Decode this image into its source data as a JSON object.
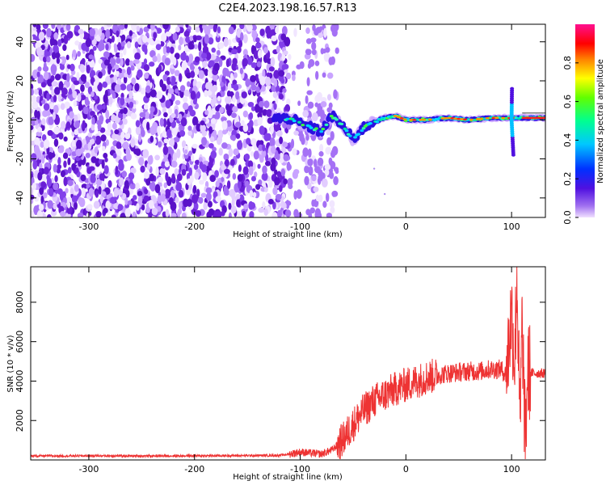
{
  "title": "C2E4.2023.198.16.57.R13",
  "colors": {
    "snr_line": "#ee3333",
    "spectrogram_purple": "#6a1fd6",
    "trace_red": "#ff1a1a",
    "frame": "#000000"
  },
  "chart_data": [
    {
      "type": "heatmap",
      "xlabel": "Height of straight line (km)",
      "ylabel": "Frequency (Hz)",
      "xlim": [
        -355,
        132
      ],
      "ylim": [
        -50,
        49
      ],
      "x_ticks": [
        -300,
        -200,
        -100,
        0,
        100
      ],
      "y_ticks": [
        -40,
        -20,
        0,
        20,
        40
      ],
      "grid": false,
      "colorbar": {
        "label": "Normalized spectral amplitude",
        "range": [
          0,
          1
        ],
        "ticks": [
          0.0,
          0.2,
          0.4,
          0.6,
          0.8
        ],
        "colormap": "hsv-rainbow (violet to magenta)"
      },
      "features": {
        "noise_region_km": [
          -355,
          -65
        ],
        "noise_gap_km": [
          -100,
          -95
        ],
        "main_trace": {
          "x": [
            -120,
            -110,
            -100,
            -90,
            -80,
            -70,
            -60,
            -50,
            -40,
            -30,
            -20,
            -10,
            0,
            20,
            40,
            60,
            80,
            90,
            100,
            110,
            132
          ],
          "y": [
            0,
            1,
            -2,
            -4,
            -6,
            2,
            -3,
            -10,
            -4,
            -1,
            1,
            2,
            0,
            0,
            1,
            0,
            1,
            1,
            1,
            1,
            1
          ]
        },
        "spike_at_km": 100,
        "spike_freq_range_hz": [
          -18,
          16
        ]
      }
    },
    {
      "type": "line",
      "xlabel": "Height of straight line (km)",
      "ylabel": "SNR (10 * v/v)",
      "xlim": [
        -355,
        132
      ],
      "ylim": [
        0,
        9800
      ],
      "x_ticks": [
        -300,
        -200,
        -100,
        0,
        100
      ],
      "y_ticks": [
        2000,
        4000,
        6000,
        8000
      ],
      "grid": false,
      "series": [
        {
          "x": [
            -355,
            -300,
            -250,
            -200,
            -150,
            -120,
            -110,
            -100,
            -90,
            -80,
            -70,
            -60,
            -50,
            -40,
            -30,
            -20,
            -10,
            0,
            10,
            20,
            30,
            40,
            50,
            60,
            70,
            80,
            90,
            95,
            100,
            103,
            105,
            108,
            110,
            113,
            115,
            120,
            132
          ],
          "y": [
            200,
            210,
            200,
            210,
            220,
            230,
            300,
            400,
            350,
            300,
            500,
            1000,
            1800,
            2500,
            3000,
            3300,
            3600,
            3800,
            4000,
            4200,
            4300,
            4400,
            4450,
            4500,
            4500,
            4600,
            4600,
            4300,
            7500,
            5000,
            9500,
            1500,
            7000,
            600,
            4500,
            4400,
            4400
          ]
        }
      ]
    }
  ]
}
